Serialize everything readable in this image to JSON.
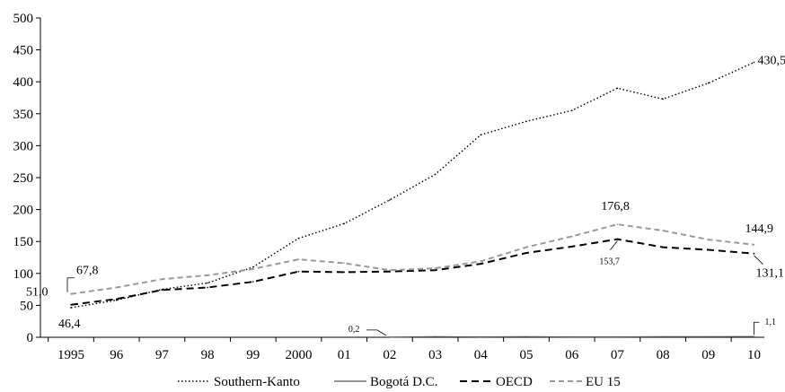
{
  "chart_data": {
    "type": "line",
    "categories": [
      "1995",
      "96",
      "97",
      "98",
      "99",
      "2000",
      "01",
      "02",
      "03",
      "04",
      "05",
      "06",
      "07",
      "08",
      "09",
      "10"
    ],
    "ylim": [
      0,
      500
    ],
    "yticks": [
      0,
      50,
      100,
      150,
      200,
      250,
      300,
      350,
      400,
      450,
      500
    ],
    "grid": false,
    "legend_position": "bottom",
    "series": [
      {
        "name": "Southern-Kanto",
        "style": "dotted",
        "color": "#000000",
        "values": [
          46.4,
          58,
          75,
          85,
          110,
          155,
          178,
          215,
          255,
          317,
          338,
          355,
          390,
          373,
          398,
          430.5
        ]
      },
      {
        "name": "Bogotá D.C.",
        "style": "solid",
        "color": "#555555",
        "values": [
          null,
          null,
          null,
          null,
          null,
          null,
          null,
          0.2,
          1,
          0.5,
          1,
          0.5,
          0.5,
          1,
          1,
          1.1
        ]
      },
      {
        "name": "OECD",
        "style": "dashed",
        "color": "#000000",
        "values": [
          51.0,
          60,
          74,
          78,
          87,
          103,
          102,
          103,
          105,
          115,
          132,
          142,
          153.7,
          141,
          137,
          131.1
        ]
      },
      {
        "name": "EU 15",
        "style": "dashed-gray",
        "color": "#999999",
        "values": [
          67.8,
          78,
          91,
          97,
          107,
          122,
          116,
          105,
          108,
          119,
          141,
          158,
          176.8,
          167,
          153,
          144.9
        ]
      }
    ],
    "annotations": [
      {
        "text": "67,8",
        "series": 3,
        "index": 0
      },
      {
        "text": "51,0",
        "series": 2,
        "index": 0
      },
      {
        "text": "46,4",
        "series": 0,
        "index": 0
      },
      {
        "text": "430,5",
        "series": 0,
        "index": 15
      },
      {
        "text": "176,8",
        "series": 3,
        "index": 12
      },
      {
        "text": "153,7",
        "series": 2,
        "index": 12
      },
      {
        "text": "144,9",
        "series": 3,
        "index": 15
      },
      {
        "text": "131,1",
        "series": 2,
        "index": 15
      },
      {
        "text": "0,2",
        "series": 1,
        "index": 7
      },
      {
        "text": "1,1",
        "series": 1,
        "index": 15
      }
    ]
  }
}
